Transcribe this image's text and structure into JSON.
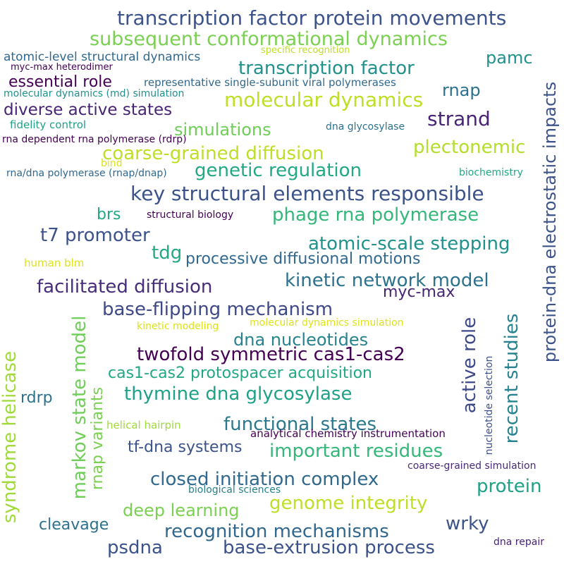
{
  "words": [
    {
      "text": "transcription factor protein movements",
      "color": "#3b528b"
    },
    {
      "text": "subsequent conformational dynamics",
      "color": "#7ad151"
    },
    {
      "text": "atomic-level structural dynamics",
      "color": "#31688e"
    },
    {
      "text": "specific recognition",
      "color": "#bddf26"
    },
    {
      "text": "myc-max heterodimer",
      "color": "#440154"
    },
    {
      "text": "transcription factor",
      "color": "#21918c"
    },
    {
      "text": "pamc",
      "color": "#21918c"
    },
    {
      "text": "essential role",
      "color": "#440154"
    },
    {
      "text": "representative single-subunit viral polymerases",
      "color": "#31688e"
    },
    {
      "text": "rnap",
      "color": "#2c728e"
    },
    {
      "text": "molecular dynamics (md) simulation",
      "color": "#21918c"
    },
    {
      "text": "molecular dynamics",
      "color": "#bddf26"
    },
    {
      "text": "diverse active states",
      "color": "#482475"
    },
    {
      "text": "strand",
      "color": "#482475"
    },
    {
      "text": "fidelity control",
      "color": "#1fa187"
    },
    {
      "text": "dna glycosylase",
      "color": "#2c728e"
    },
    {
      "text": "simulations",
      "color": "#6ece58"
    },
    {
      "text": "rna dependent rna polymerase (rdrp)",
      "color": "#440154"
    },
    {
      "text": "plectonemic",
      "color": "#b5de2b"
    },
    {
      "text": "coarse-grained diffusion",
      "color": "#bddf26"
    },
    {
      "text": "bind",
      "color": "#dde318"
    },
    {
      "text": "genetic regulation",
      "color": "#22a884"
    },
    {
      "text": "rna/dna polymerase (rnap/dnap)",
      "color": "#31688e"
    },
    {
      "text": "biochemistry",
      "color": "#22a884"
    },
    {
      "text": "key structural elements responsible",
      "color": "#3b528b"
    },
    {
      "text": "brs",
      "color": "#22a884"
    },
    {
      "text": "structural biology",
      "color": "#440154"
    },
    {
      "text": "phage rna polymerase",
      "color": "#35b779"
    },
    {
      "text": "t7 promoter",
      "color": "#3b528b"
    },
    {
      "text": "atomic-scale stepping",
      "color": "#21918c"
    },
    {
      "text": "tdg",
      "color": "#22a884"
    },
    {
      "text": "processive diffusional motions",
      "color": "#31688e"
    },
    {
      "text": "human blm",
      "color": "#dde318"
    },
    {
      "text": "kinetic network model",
      "color": "#2c728e"
    },
    {
      "text": "facilitated diffusion",
      "color": "#472d7b"
    },
    {
      "text": "myc-max",
      "color": "#482475"
    },
    {
      "text": "base-flipping mechanism",
      "color": "#3e4989"
    },
    {
      "text": "kinetic modeling",
      "color": "#dde318"
    },
    {
      "text": "molecular dynamics simulation",
      "color": "#dde318"
    },
    {
      "text": "dna nucleotides",
      "color": "#26828e"
    },
    {
      "text": "twofold symmetric cas1-cas2",
      "color": "#440154"
    },
    {
      "text": "cas1-cas2 protospacer acquisition",
      "color": "#22a884"
    },
    {
      "text": "thymine dna glycosylase",
      "color": "#1fa187"
    },
    {
      "text": "rdrp",
      "color": "#2c728e"
    },
    {
      "text": "functional states",
      "color": "#2a788e"
    },
    {
      "text": "helical hairpin",
      "color": "#a0da39"
    },
    {
      "text": "analytical chemistry instrumentation",
      "color": "#440154"
    },
    {
      "text": "tf-dna systems",
      "color": "#3b528b"
    },
    {
      "text": "important residues",
      "color": "#35b779"
    },
    {
      "text": "closed initiation complex",
      "color": "#31688e"
    },
    {
      "text": "coarse-grained simulation",
      "color": "#482878"
    },
    {
      "text": "protein",
      "color": "#1fa187"
    },
    {
      "text": "biological sciences",
      "color": "#26828e"
    },
    {
      "text": "genome integrity",
      "color": "#bddf26"
    },
    {
      "text": "deep learning",
      "color": "#7ad151"
    },
    {
      "text": "cleavage",
      "color": "#2c728e"
    },
    {
      "text": "wrky",
      "color": "#3b528b"
    },
    {
      "text": "recognition mechanisms",
      "color": "#31688e"
    },
    {
      "text": "psdna",
      "color": "#3b528b"
    },
    {
      "text": "base-extrusion process",
      "color": "#3b528b"
    },
    {
      "text": "dna repair",
      "color": "#482475"
    },
    {
      "text": "protein-dna electrostatic impacts",
      "color": "#3b528b"
    },
    {
      "text": "active role",
      "color": "#3e4989"
    },
    {
      "text": "recent studies",
      "color": "#26828e"
    },
    {
      "text": "nucleotide selection",
      "color": "#3b528b"
    },
    {
      "text": "syndrome helicase",
      "color": "#a0da39"
    },
    {
      "text": "markov state model",
      "color": "#6ece58"
    },
    {
      "text": "rnap variants",
      "color": "#7ad151"
    }
  ]
}
